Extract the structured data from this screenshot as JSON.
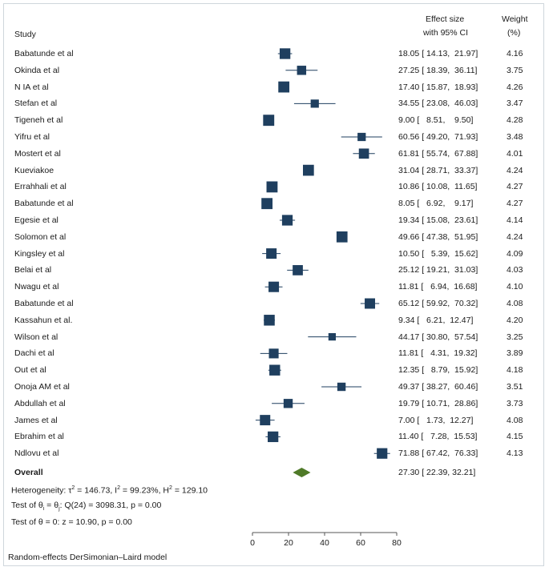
{
  "headers": {
    "study": "Study",
    "effect_line1": "Effect size",
    "effect_line2": "with 95% CI",
    "weight_line1": "Weight",
    "weight_line2": "(%)"
  },
  "chart_data": {
    "type": "forest",
    "xlim": [
      0,
      80
    ],
    "xticks": [
      0,
      20,
      40,
      60,
      80
    ],
    "colors": {
      "marker": "#1f3f5f",
      "ci_line": "#1f3f5f",
      "overall": "#4f7a28",
      "axis": "#555555"
    },
    "studies": [
      {
        "name": "Babatunde et al",
        "es": 18.05,
        "lo": 14.13,
        "hi": 21.97,
        "ci_text": "18.05 [ 14.13,  21.97]",
        "weight": "4.16"
      },
      {
        "name": "Okinda et al",
        "es": 27.25,
        "lo": 18.39,
        "hi": 36.11,
        "ci_text": "27.25 [ 18.39,  36.11]",
        "weight": "3.75"
      },
      {
        "name": "N IA et al",
        "es": 17.4,
        "lo": 15.87,
        "hi": 18.93,
        "ci_text": "17.40 [ 15.87,  18.93]",
        "weight": "4.26"
      },
      {
        "name": "Stefan et al",
        "es": 34.55,
        "lo": 23.08,
        "hi": 46.03,
        "ci_text": "34.55 [ 23.08,  46.03]",
        "weight": "3.47"
      },
      {
        "name": "Tigeneh et al",
        "es": 9.0,
        "lo": 8.51,
        "hi": 9.5,
        "ci_text": "9.00 [   8.51,    9.50]",
        "weight": "4.28"
      },
      {
        "name": "Yifru et al",
        "es": 60.56,
        "lo": 49.2,
        "hi": 71.93,
        "ci_text": "60.56 [ 49.20,  71.93]",
        "weight": "3.48"
      },
      {
        "name": "Mostert et al",
        "es": 61.81,
        "lo": 55.74,
        "hi": 67.88,
        "ci_text": "61.81 [ 55.74,  67.88]",
        "weight": "4.01"
      },
      {
        "name": "Kueviakoe",
        "es": 31.04,
        "lo": 28.71,
        "hi": 33.37,
        "ci_text": "31.04 [ 28.71,  33.37]",
        "weight": "4.24"
      },
      {
        "name": "Errahhali et al",
        "es": 10.86,
        "lo": 10.08,
        "hi": 11.65,
        "ci_text": "10.86 [ 10.08,  11.65]",
        "weight": "4.27"
      },
      {
        "name": "Babatunde et al",
        "es": 8.05,
        "lo": 6.92,
        "hi": 9.17,
        "ci_text": "8.05 [   6.92,    9.17]",
        "weight": "4.27"
      },
      {
        "name": "Egesie et al",
        "es": 19.34,
        "lo": 15.08,
        "hi": 23.61,
        "ci_text": "19.34 [ 15.08,  23.61]",
        "weight": "4.14"
      },
      {
        "name": "Solomon et al",
        "es": 49.66,
        "lo": 47.38,
        "hi": 51.95,
        "ci_text": "49.66 [ 47.38,  51.95]",
        "weight": "4.24"
      },
      {
        "name": "Kingsley et al",
        "es": 10.5,
        "lo": 5.39,
        "hi": 15.62,
        "ci_text": "10.50 [   5.39,  15.62]",
        "weight": "4.09"
      },
      {
        "name": "Belai et al",
        "es": 25.12,
        "lo": 19.21,
        "hi": 31.03,
        "ci_text": "25.12 [ 19.21,  31.03]",
        "weight": "4.03"
      },
      {
        "name": "Nwagu et al",
        "es": 11.81,
        "lo": 6.94,
        "hi": 16.68,
        "ci_text": "11.81 [   6.94,  16.68]",
        "weight": "4.10"
      },
      {
        "name": "Babatunde et al",
        "es": 65.12,
        "lo": 59.92,
        "hi": 70.32,
        "ci_text": "65.12 [ 59.92,  70.32]",
        "weight": "4.08"
      },
      {
        "name": "Kassahun et al.",
        "es": 9.34,
        "lo": 6.21,
        "hi": 12.47,
        "ci_text": "9.34 [   6.21,  12.47]",
        "weight": "4.20"
      },
      {
        "name": "Wilson et al",
        "es": 44.17,
        "lo": 30.8,
        "hi": 57.54,
        "ci_text": "44.17 [ 30.80,  57.54]",
        "weight": "3.25"
      },
      {
        "name": "Dachi et al",
        "es": 11.81,
        "lo": 4.31,
        "hi": 19.32,
        "ci_text": "11.81 [   4.31,  19.32]",
        "weight": "3.89"
      },
      {
        "name": "Out et al",
        "es": 12.35,
        "lo": 8.79,
        "hi": 15.92,
        "ci_text": "12.35 [   8.79,  15.92]",
        "weight": "4.18"
      },
      {
        "name": "Onoja AM et al",
        "es": 49.37,
        "lo": 38.27,
        "hi": 60.46,
        "ci_text": "49.37 [ 38.27,  60.46]",
        "weight": "3.51"
      },
      {
        "name": "Abdullah et al",
        "es": 19.79,
        "lo": 10.71,
        "hi": 28.86,
        "ci_text": "19.79 [ 10.71,  28.86]",
        "weight": "3.73"
      },
      {
        "name": "James et al",
        "es": 7.0,
        "lo": 1.73,
        "hi": 12.27,
        "ci_text": "7.00 [   1.73,  12.27]",
        "weight": "4.08"
      },
      {
        "name": "Ebrahim et al",
        "es": 11.4,
        "lo": 7.28,
        "hi": 15.53,
        "ci_text": "11.40 [   7.28,  15.53]",
        "weight": "4.15"
      },
      {
        "name": "Ndlovu et al",
        "es": 71.88,
        "lo": 67.42,
        "hi": 76.33,
        "ci_text": "71.88 [ 67.42,  76.33]",
        "weight": "4.13"
      }
    ],
    "overall": {
      "label": "Overall",
      "es": 27.3,
      "lo": 22.39,
      "hi": 32.21,
      "ci_text": "27.30 [ 22.39,  32.21]"
    }
  },
  "footer": {
    "heterogeneity_prefix": "Heterogeneity: τ",
    "sup2a": "2",
    "heterogeneity_mid1": " = 146.73, I",
    "sup2b": "2",
    "heterogeneity_mid2": " = 99.23%, H",
    "sup2c": "2",
    "heterogeneity_end": " = 129.10",
    "test1_a": "Test of θ",
    "sub_i": "i",
    "test1_b": " = θ",
    "sub_j": "j",
    "test1_c": ": Q(24) = 3098.31, p = 0.00",
    "test2": "Test of θ = 0: z = 10.90, p = 0.00",
    "model": "Random-effects DerSimonian–Laird model"
  }
}
